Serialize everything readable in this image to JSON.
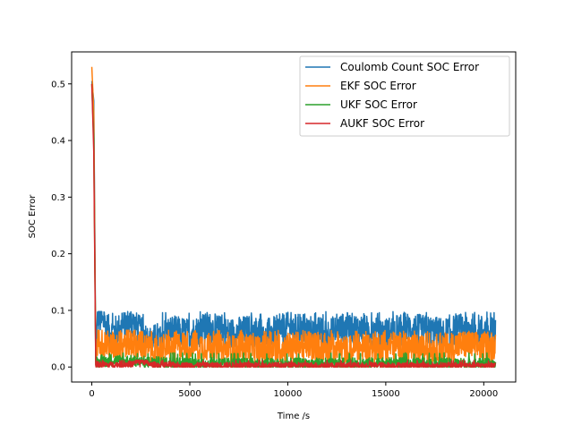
{
  "chart_data": {
    "type": "line",
    "title": "",
    "xlabel": "Time /s",
    "ylabel": "SOC Error",
    "xlim": [
      -1030,
      21630
    ],
    "ylim": [
      -0.0265,
      0.5565
    ],
    "x_ticks": [
      0,
      5000,
      10000,
      15000,
      20000
    ],
    "y_ticks": [
      0.0,
      0.1,
      0.2,
      0.3,
      0.4,
      0.5
    ],
    "x_tick_labels": [
      "0",
      "5000",
      "10000",
      "15000",
      "20000"
    ],
    "y_tick_labels": [
      "0.0",
      "0.1",
      "0.2",
      "0.3",
      "0.4",
      "0.5"
    ],
    "grid": false,
    "legend_position": "top-right",
    "series": [
      {
        "name": "Coulomb Count SOC Error",
        "color": "#1f77b4",
        "initial": [
          [
            0,
            0.505
          ],
          [
            100,
            0.47
          ],
          [
            200,
            0.02
          ]
        ],
        "band_low": 0.035,
        "band_high": 0.098,
        "points": [
          [
            200,
            0.02
          ],
          [
            300,
            0.09
          ],
          [
            1000,
            0.06
          ],
          [
            2000,
            0.08
          ],
          [
            3000,
            0.045
          ],
          [
            4000,
            0.065
          ],
          [
            5000,
            0.06
          ],
          [
            6000,
            0.07
          ],
          [
            7000,
            0.06
          ],
          [
            8000,
            0.065
          ],
          [
            9000,
            0.06
          ],
          [
            10000,
            0.07
          ],
          [
            11000,
            0.065
          ],
          [
            12000,
            0.06
          ],
          [
            13000,
            0.07
          ],
          [
            14000,
            0.065
          ],
          [
            15000,
            0.06
          ],
          [
            16000,
            0.07
          ],
          [
            17000,
            0.065
          ],
          [
            18000,
            0.06
          ],
          [
            19000,
            0.07
          ],
          [
            20000,
            0.065
          ],
          [
            20600,
            0.06
          ]
        ]
      },
      {
        "name": "EKF SOC Error",
        "color": "#ff7f0e",
        "initial": [
          [
            0,
            0.53
          ],
          [
            100,
            0.45
          ],
          [
            200,
            0.01
          ]
        ],
        "band_low": 0.005,
        "band_high": 0.065,
        "points": [
          [
            200,
            0.01
          ],
          [
            300,
            0.05
          ],
          [
            1000,
            0.035
          ],
          [
            2000,
            0.045
          ],
          [
            3000,
            0.03
          ],
          [
            4000,
            0.035
          ],
          [
            5000,
            0.04
          ],
          [
            6000,
            0.035
          ],
          [
            7000,
            0.03
          ],
          [
            8000,
            0.035
          ],
          [
            9000,
            0.03
          ],
          [
            10000,
            0.035
          ],
          [
            11000,
            0.04
          ],
          [
            12000,
            0.035
          ],
          [
            13000,
            0.03
          ],
          [
            14000,
            0.035
          ],
          [
            15000,
            0.04
          ],
          [
            16000,
            0.035
          ],
          [
            17000,
            0.03
          ],
          [
            18000,
            0.035
          ],
          [
            19000,
            0.04
          ],
          [
            20000,
            0.035
          ],
          [
            20600,
            0.04
          ]
        ]
      },
      {
        "name": "UKF SOC Error",
        "color": "#2ca02c",
        "initial": [
          [
            0,
            0.5
          ],
          [
            100,
            0.4
          ],
          [
            200,
            0.01
          ]
        ],
        "band_low": 0.0,
        "band_high": 0.025,
        "points": [
          [
            200,
            0.01
          ],
          [
            1000,
            0.012
          ],
          [
            2000,
            0.01
          ],
          [
            3000,
            0.008
          ],
          [
            5000,
            0.006
          ],
          [
            10000,
            0.005
          ],
          [
            15000,
            0.006
          ],
          [
            20000,
            0.005
          ],
          [
            20600,
            0.005
          ]
        ]
      },
      {
        "name": "AUKF SOC Error",
        "color": "#d62728",
        "initial": [
          [
            0,
            0.5
          ],
          [
            100,
            0.38
          ],
          [
            200,
            0.005
          ]
        ],
        "band_low": 0.0,
        "band_high": 0.012,
        "points": [
          [
            200,
            0.005
          ],
          [
            1000,
            0.004
          ],
          [
            2000,
            0.005
          ],
          [
            2500,
            0.012
          ],
          [
            3000,
            0.004
          ],
          [
            5000,
            0.003
          ],
          [
            10000,
            0.003
          ],
          [
            15000,
            0.003
          ],
          [
            20000,
            0.003
          ],
          [
            20600,
            0.003
          ]
        ]
      }
    ]
  }
}
